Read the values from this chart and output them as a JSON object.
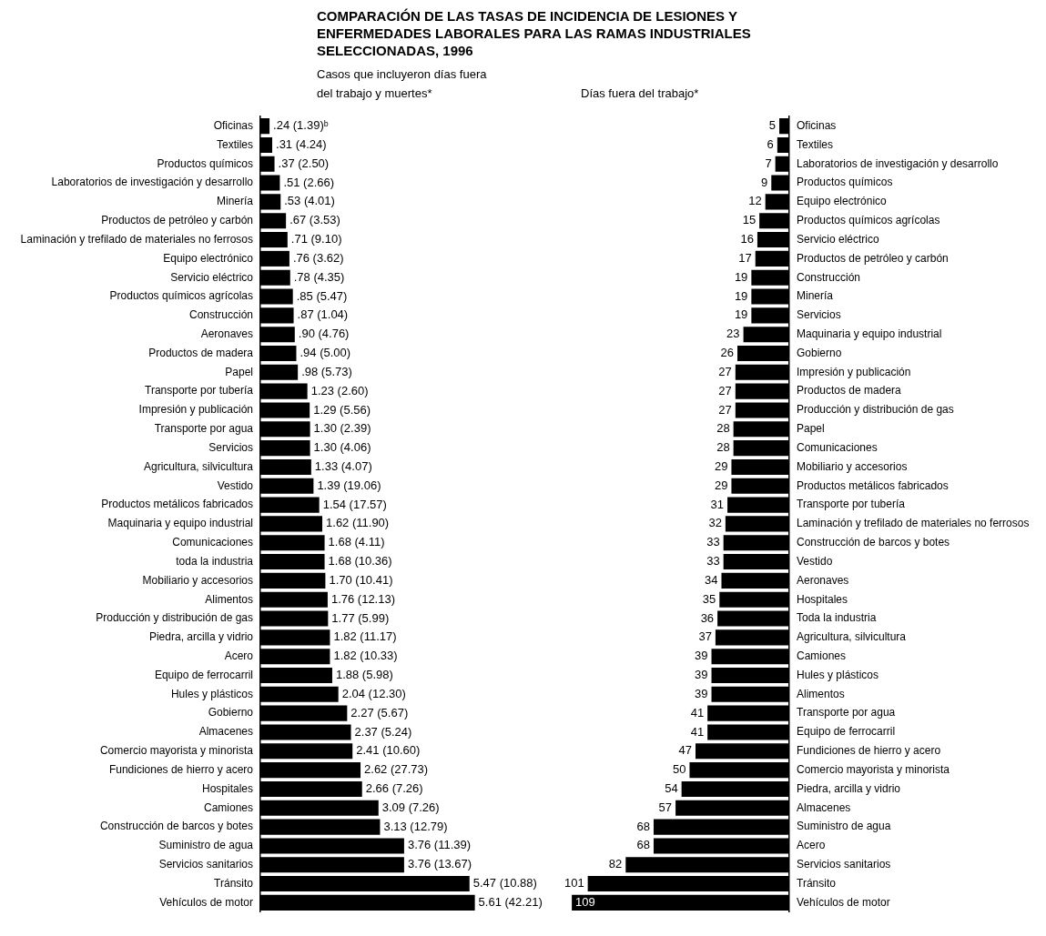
{
  "chart_data": [
    {
      "type": "bar",
      "orientation": "horizontal",
      "title": "COMPARACIÓN DE LAS TASAS DE INCIDENCIA DE LESIONES Y ENFERMEDADES LABORALES PARA LAS RAMAS INDUSTRIALES SELECCIONADAS, 1996",
      "subtitle": "Casos que incluyeron días fuera del trabajo y muertes*",
      "color": "#000000",
      "tick_labels": "y",
      "categories": [
        "Oficinas",
        "Textiles",
        "Productos químicos",
        "Laboratorios de investigación y desarrollo",
        "Minería",
        "Productos de petróleo y carbón",
        "Laminación y trefilado de materiales no ferrosos",
        "Equipo electrónico",
        "Servicio eléctrico",
        "Productos químicos agrícolas",
        "Construcción",
        "Aeronaves",
        "Productos de madera",
        "Papel",
        "Transporte por tubería",
        "Impresión y publicación",
        "Transporte por agua",
        "Servicios",
        "Agricultura, silvicultura",
        "Vestido",
        "Productos metálicos fabricados",
        "Maquinaria y equipo industrial",
        "Comunicaciones",
        "toda la industria",
        "Mobiliario y accesorios",
        "Alimentos",
        "Producción y distribución de gas",
        "Piedra, arcilla y vidrio",
        "Acero",
        "Equipo de ferrocarril",
        "Hules y plásticos",
        "Gobierno",
        "Almacenes",
        "Comercio mayorista y minorista",
        "Fundiciones de hierro y acero",
        "Hospitales",
        "Camiones",
        "Construcción de barcos y botes",
        "Suministro de agua",
        "Servicios sanitarios",
        "Tránsito",
        "Vehículos de motor"
      ],
      "values": [
        0.24,
        0.31,
        0.37,
        0.51,
        0.53,
        0.67,
        0.71,
        0.76,
        0.78,
        0.85,
        0.87,
        0.9,
        0.94,
        0.98,
        1.23,
        1.29,
        1.3,
        1.3,
        1.33,
        1.39,
        1.54,
        1.62,
        1.68,
        1.68,
        1.7,
        1.76,
        1.77,
        1.82,
        1.82,
        1.88,
        2.04,
        2.27,
        2.37,
        2.41,
        2.62,
        2.66,
        3.09,
        3.13,
        3.76,
        3.76,
        5.47,
        5.61
      ],
      "value_labels": [
        ".24 (1.39)ᵇ",
        ".31 (4.24)",
        ".37 (2.50)",
        ".51 (2.66)",
        ".53 (4.01)",
        ".67 (3.53)",
        ".71 (9.10)",
        ".76 (3.62)",
        ".78 (4.35)",
        ".85 (5.47)",
        ".87 (1.04)",
        ".90 (4.76)",
        ".94 (5.00)",
        ".98 (5.73)",
        "1.23 (2.60)",
        "1.29 (5.56)",
        "1.30 (2.39)",
        "1.30 (4.06)",
        "1.33 (4.07)",
        "1.39 (19.06)",
        "1.54 (17.57)",
        "1.62 (11.90)",
        "1.68 (4.11)",
        "1.68 (10.36)",
        "1.70 (10.41)",
        "1.76 (12.13)",
        "1.77 (5.99)",
        "1.82 (11.17)",
        "1.82 (10.33)",
        "1.88 (5.98)",
        "2.04 (12.30)",
        "2.27 (5.67)",
        "2.37 (5.24)",
        "2.41 (10.60)",
        "2.62 (27.73)",
        "2.66 (7.26)",
        "3.09 (7.26)",
        "3.13 (12.79)",
        "3.76 (11.39)",
        "3.76 (13.67)",
        "5.47 (10.88)",
        "5.61 (42.21)"
      ]
    },
    {
      "type": "bar",
      "orientation": "horizontal",
      "subtitle": "Días fuera del trabajo*",
      "color": "#000000",
      "tick_labels": "y",
      "data_labels": true,
      "categories": [
        "Oficinas",
        "Textiles",
        "Laboratorios de investigación y desarrollo",
        "Productos químicos",
        "Equipo electrónico",
        "Productos químicos agrícolas",
        "Servicio eléctrico",
        "Productos de petróleo y carbón",
        "Construcción",
        "Minería",
        "Servicios",
        "Maquinaria y equipo industrial",
        "Gobierno",
        "Impresión y publicación",
        "Productos de madera",
        "Producción y distribución de gas",
        "Papel",
        "Comunicaciones",
        "Mobiliario y accesorios",
        "Productos metálicos fabricados",
        "Transporte por tubería",
        "Laminación y trefilado de materiales no ferrosos",
        "Construcción de barcos y botes",
        "Vestido",
        "Aeronaves",
        "Hospitales",
        "Toda la industria",
        "Agricultura, silvicultura",
        "Camiones",
        "Hules y plásticos",
        "Alimentos",
        "Transporte por agua",
        "Equipo de ferrocarril",
        "Fundiciones de hierro y acero",
        "Comercio mayorista y minorista",
        "Piedra, arcilla y vidrio",
        "Almacenes",
        "Suministro de agua",
        "Acero",
        "Servicios sanitarios",
        "Tránsito",
        "Vehículos de motor"
      ],
      "values": [
        5,
        6,
        7,
        9,
        12,
        15,
        16,
        17,
        19,
        19,
        19,
        23,
        26,
        27,
        27,
        27,
        28,
        28,
        29,
        29,
        31,
        32,
        33,
        33,
        34,
        35,
        36,
        37,
        39,
        39,
        39,
        41,
        41,
        47,
        50,
        54,
        57,
        68,
        68,
        82,
        101,
        109
      ]
    }
  ]
}
